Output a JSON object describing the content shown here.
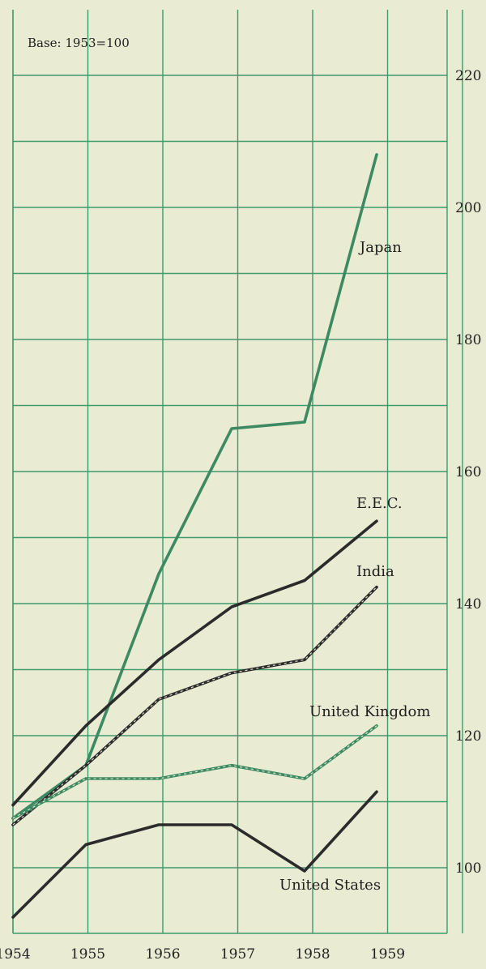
{
  "chart_data": {
    "type": "line",
    "subtitle": "Base: 1953=100",
    "x": [
      "1954",
      "1955",
      "1956",
      "1957",
      "1958",
      "1959"
    ],
    "ylim": [
      90,
      230
    ],
    "yticks": [
      100,
      120,
      140,
      160,
      180,
      200,
      220
    ],
    "grid": true,
    "y_axis_position": "right",
    "series": [
      {
        "name": "Japan",
        "color": "#3d8a62",
        "style": "solid",
        "values": [
          107.5,
          115.5,
          144.5,
          166.5,
          167.5,
          208
        ]
      },
      {
        "name": "E.E.C.",
        "color": "#2b2b2b",
        "style": "solid",
        "values": [
          109.5,
          121.5,
          131.5,
          139.5,
          143.5,
          152.5
        ]
      },
      {
        "name": "India",
        "color": "#2b2b2b",
        "style": "dashed-double",
        "values": [
          106.5,
          115.5,
          125.5,
          129.5,
          131.5,
          142.5
        ]
      },
      {
        "name": "United Kingdom",
        "color": "#3d8a62",
        "style": "dashed-double",
        "values": [
          107.5,
          113.5,
          113.5,
          115.5,
          113.5,
          121.5
        ]
      },
      {
        "name": "United States",
        "color": "#2b2b2b",
        "style": "solid",
        "values": [
          92.5,
          103.5,
          106.5,
          106.5,
          99.5,
          111.5
        ]
      }
    ]
  }
}
